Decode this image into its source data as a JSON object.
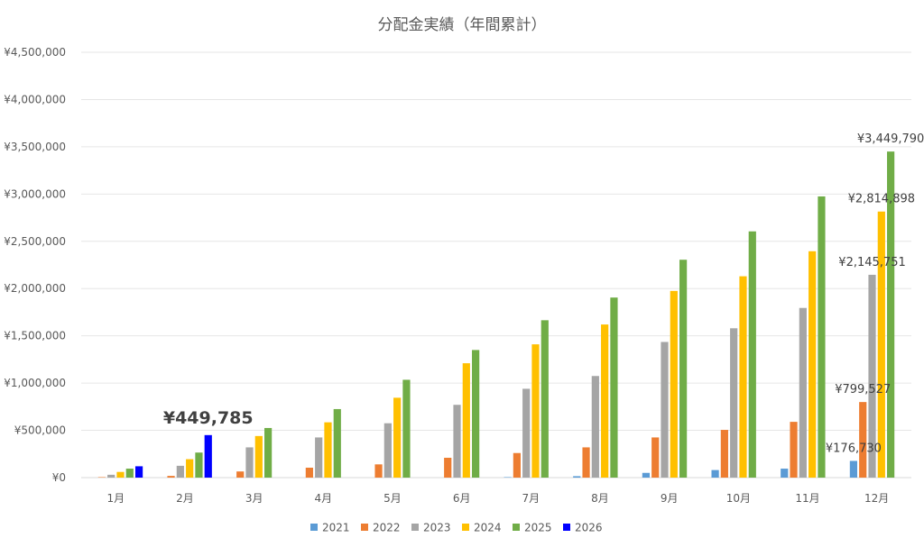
{
  "chart_data": {
    "type": "bar",
    "title": "分配金実績（年間累計）",
    "xlabel": "",
    "ylabel": "",
    "categories": [
      "1月",
      "2月",
      "3月",
      "4月",
      "5月",
      "6月",
      "7月",
      "8月",
      "9月",
      "10月",
      "11月",
      "12月"
    ],
    "ylim": [
      0,
      4500000
    ],
    "yticks": [
      0,
      500000,
      1000000,
      1500000,
      2000000,
      2500000,
      3000000,
      3500000,
      4000000,
      4500000
    ],
    "ytick_labels": [
      "¥0",
      "¥500,000",
      "¥1,000,000",
      "¥1,500,000",
      "¥2,000,000",
      "¥2,500,000",
      "¥3,000,000",
      "¥3,500,000",
      "¥4,000,000",
      "¥4,500,000"
    ],
    "grid": true,
    "legend_position": "bottom",
    "series": [
      {
        "name": "2021",
        "color": "#5B9BD5",
        "values": [
          0,
          0,
          0,
          0,
          0,
          0,
          5000,
          15000,
          50000,
          80000,
          95000,
          176730
        ]
      },
      {
        "name": "2022",
        "color": "#ED7D31",
        "values": [
          5000,
          18000,
          65000,
          105000,
          140000,
          210000,
          260000,
          320000,
          425000,
          505000,
          590000,
          799527
        ]
      },
      {
        "name": "2023",
        "color": "#A5A5A5",
        "values": [
          30000,
          125000,
          320000,
          425000,
          575000,
          770000,
          940000,
          1075000,
          1435000,
          1580000,
          1795000,
          2145751
        ]
      },
      {
        "name": "2024",
        "color": "#FFC000",
        "values": [
          60000,
          195000,
          440000,
          585000,
          845000,
          1210000,
          1410000,
          1620000,
          1975000,
          2130000,
          2395000,
          2814898
        ]
      },
      {
        "name": "2025",
        "color": "#70AD47",
        "values": [
          95000,
          265000,
          525000,
          725000,
          1035000,
          1350000,
          1665000,
          1905000,
          2305000,
          2605000,
          2975000,
          3449790
        ]
      },
      {
        "name": "2026",
        "color": "#0000FF",
        "values": [
          120000,
          449785,
          null,
          null,
          null,
          null,
          null,
          null,
          null,
          null,
          null,
          null
        ]
      }
    ],
    "data_labels": [
      {
        "text": "¥449,785",
        "series": "2026",
        "category": "2月",
        "style": "large"
      },
      {
        "text": "¥176,730",
        "series": "2021",
        "category": "12月",
        "style": "normal"
      },
      {
        "text": "¥799,527",
        "series": "2022",
        "category": "12月",
        "style": "normal"
      },
      {
        "text": "¥2,145,751",
        "series": "2023",
        "category": "12月",
        "style": "normal"
      },
      {
        "text": "¥2,814,898",
        "series": "2024",
        "category": "12月",
        "style": "normal"
      },
      {
        "text": "¥3,449,790",
        "series": "2025",
        "category": "12月",
        "style": "normal"
      }
    ]
  }
}
